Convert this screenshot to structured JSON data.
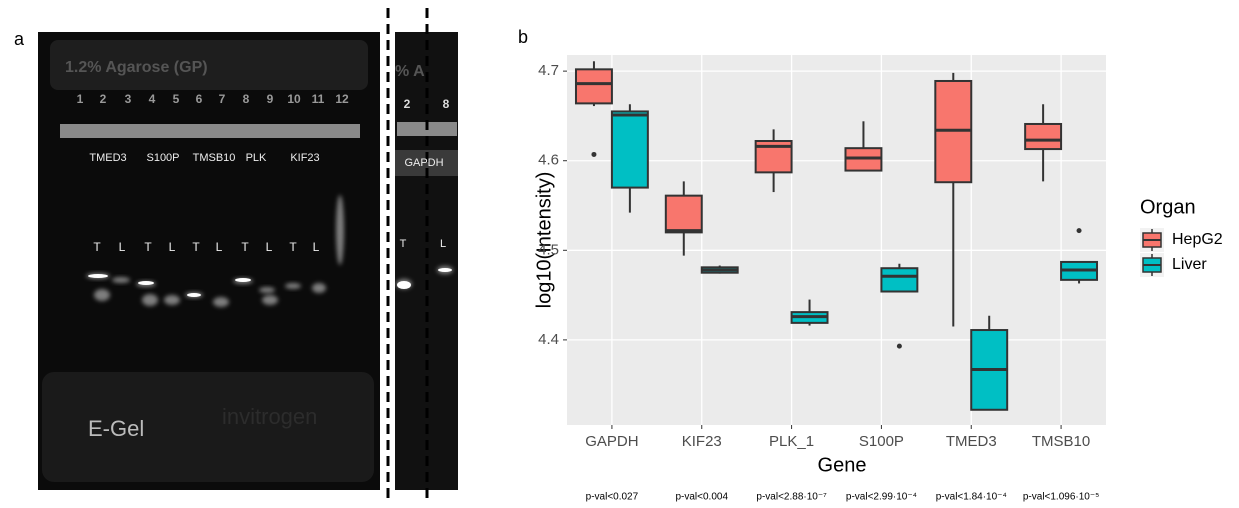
{
  "panel_labels": {
    "a": "a",
    "b": "b"
  },
  "gel": {
    "title": "1.2% Agarose (GP)",
    "strip_title": "% A",
    "lanes": [
      "1",
      "2",
      "3",
      "4",
      "5",
      "6",
      "7",
      "8",
      "9",
      "10",
      "11",
      "12"
    ],
    "genes": [
      "TMED3",
      "S100P",
      "TMSB10",
      "PLK",
      "KIF23"
    ],
    "tl": [
      "T",
      "L",
      "T",
      "L",
      "T",
      "L",
      "T",
      "L",
      "T",
      "L"
    ],
    "strip_lanes": [
      "2",
      "8"
    ],
    "strip_gene": "GAPDH",
    "strip_tl": [
      "T",
      "L"
    ],
    "brand": "E-Gel",
    "maker": "invitrogen"
  },
  "chart_data": {
    "type": "box",
    "xlabel": "Gene",
    "ylabel": "log10(Intensity)",
    "categories": [
      "GAPDH",
      "KIF23",
      "PLK_1",
      "S100P",
      "TMED3",
      "TMSB10"
    ],
    "ylim": [
      4.305,
      4.718
    ],
    "yticks": [
      4.4,
      4.5,
      4.6,
      4.7
    ],
    "grid": true,
    "legend_title": "Organ",
    "legend": "right",
    "series": [
      {
        "name": "HepG2",
        "color": "#F8766D",
        "boxes": [
          {
            "low": 4.661,
            "q1": 4.664,
            "median": 4.686,
            "q3": 4.702,
            "high": 4.711,
            "outliers": [
              4.607
            ]
          },
          {
            "low": 4.494,
            "q1": 4.52,
            "median": 4.522,
            "q3": 4.561,
            "high": 4.577,
            "outliers": []
          },
          {
            "low": 4.565,
            "q1": 4.587,
            "median": 4.616,
            "q3": 4.622,
            "high": 4.635,
            "outliers": []
          },
          {
            "low": 4.589,
            "q1": 4.589,
            "median": 4.603,
            "q3": 4.614,
            "high": 4.644,
            "outliers": []
          },
          {
            "low": 4.415,
            "q1": 4.576,
            "median": 4.634,
            "q3": 4.689,
            "high": 4.698,
            "outliers": []
          },
          {
            "low": 4.577,
            "q1": 4.613,
            "median": 4.623,
            "q3": 4.641,
            "high": 4.663,
            "outliers": []
          }
        ]
      },
      {
        "name": "Liver",
        "color": "#00BFC4",
        "boxes": [
          {
            "low": 4.542,
            "q1": 4.57,
            "median": 4.651,
            "q3": 4.655,
            "high": 4.663,
            "outliers": []
          },
          {
            "low": 4.474,
            "q1": 4.475,
            "median": 4.478,
            "q3": 4.481,
            "high": 4.483,
            "outliers": []
          },
          {
            "low": 4.416,
            "q1": 4.419,
            "median": 4.426,
            "q3": 4.431,
            "high": 4.445,
            "outliers": []
          },
          {
            "low": 4.454,
            "q1": 4.454,
            "median": 4.471,
            "q3": 4.48,
            "high": 4.485,
            "outliers": [
              4.393
            ]
          },
          {
            "low": 4.322,
            "q1": 4.322,
            "median": 4.367,
            "q3": 4.411,
            "high": 4.427,
            "outliers": []
          },
          {
            "low": 4.463,
            "q1": 4.467,
            "median": 4.478,
            "q3": 4.487,
            "high": 4.487,
            "outliers": [
              4.522
            ]
          }
        ]
      }
    ],
    "annotations": [
      "p-val<0.027",
      "p-val<0.004",
      "p-val<2.88·10⁻⁷",
      "p-val<2.99·10⁻⁴",
      "p-val<1.84·10⁻⁴",
      "p-val<1.096·10⁻⁵"
    ]
  }
}
